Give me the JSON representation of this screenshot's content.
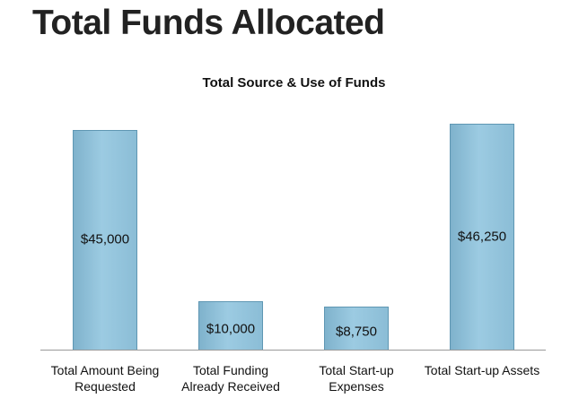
{
  "page_title": "Total Funds Allocated",
  "chart_data": {
    "type": "bar",
    "title": "Total Source & Use of Funds",
    "categories": [
      "Total Amount Being Requested",
      "Total Funding Already Received",
      "Total Start-up Expenses",
      "Total Start-up Assets"
    ],
    "values": [
      45000,
      10000,
      8750,
      46250
    ],
    "value_labels": [
      "$45,000",
      "$10,000",
      "$8,750",
      "$46,250"
    ],
    "color": "#8dbfd8"
  }
}
